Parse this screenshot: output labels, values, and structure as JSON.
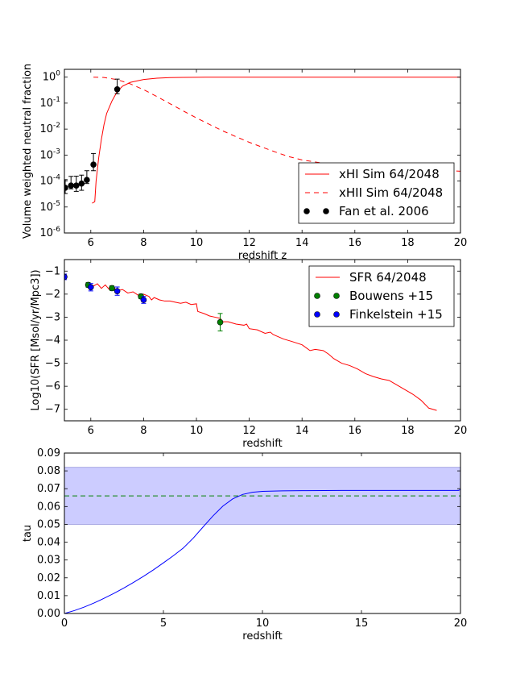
{
  "chart_data": [
    {
      "type": "line",
      "xlabel": "redshift z",
      "ylabel": "Volume weighted neutral fraction",
      "xlim": [
        5,
        20
      ],
      "ylim": [
        1e-06,
        2
      ],
      "yscale": "log",
      "x_ticks": [
        "6",
        "8",
        "10",
        "12",
        "14",
        "16",
        "18",
        "20"
      ],
      "y_ticks": [
        {
          "base": "10",
          "exp": "-6"
        },
        {
          "base": "10",
          "exp": "-5"
        },
        {
          "base": "10",
          "exp": "-4"
        },
        {
          "base": "10",
          "exp": "-3"
        },
        {
          "base": "10",
          "exp": "-2"
        },
        {
          "base": "10",
          "exp": "-1"
        },
        {
          "base": "10",
          "exp": "0"
        }
      ],
      "legend_position": "lower-right",
      "series": [
        {
          "name": "xHI Sim 64/2048",
          "style": "solid",
          "color": "#ff0000",
          "x": [
            6.05,
            6.15,
            6.2,
            6.3,
            6.4,
            6.5,
            6.6,
            6.8,
            7.0,
            7.2,
            7.5,
            8.0,
            8.5,
            9.0,
            9.5,
            10.0,
            11,
            12,
            14,
            16,
            18,
            20
          ],
          "y": [
            1.4e-05,
            1.6e-05,
            0.0001,
            0.0008,
            0.004,
            0.015,
            0.04,
            0.12,
            0.28,
            0.45,
            0.63,
            0.81,
            0.91,
            0.96,
            0.98,
            0.99,
            1.0,
            1.0,
            1.0,
            1.0,
            1.0,
            1.0
          ]
        },
        {
          "name": "xHII Sim 64/2048",
          "style": "dashed",
          "color": "#ff0000",
          "x": [
            6.1,
            6.5,
            7.0,
            7.5,
            8.0,
            8.5,
            9.0,
            9.5,
            10.0,
            10.5,
            11,
            11.5,
            12,
            12.5,
            13,
            13.5,
            14,
            15,
            16,
            17,
            18,
            19,
            20
          ],
          "y": [
            1.0,
            0.97,
            0.8,
            0.55,
            0.33,
            0.18,
            0.095,
            0.05,
            0.027,
            0.015,
            0.0085,
            0.0051,
            0.0031,
            0.002,
            0.0013,
            0.00087,
            0.00065,
            0.00045,
            0.00036,
            0.00031,
            0.00028,
            0.00026,
            0.00024
          ]
        },
        {
          "name": "Fan et al. 2006",
          "style": "points",
          "color": "#000000",
          "x": [
            5.03,
            5.25,
            5.45,
            5.65,
            5.85,
            6.1,
            7.0
          ],
          "y": [
            5.5e-05,
            6.7e-05,
            6.7e-05,
            8e-05,
            0.00011,
            0.00043,
            0.34
          ],
          "yerr_low": [
            2.2e-05,
            1.7e-05,
            2.7e-05,
            3.6e-05,
            3e-05,
            0.00018,
            0.11
          ],
          "yerr_high": [
            5.8e-05,
            8.4e-05,
            8.7e-05,
            8.9e-05,
            0.00014,
            0.00072,
            0.5
          ]
        }
      ]
    },
    {
      "type": "line",
      "xlabel": "redshift",
      "ylabel": "Log10(SFR [Msol/yr/Mpc3])",
      "xlim": [
        5,
        20
      ],
      "ylim": [
        -7.5,
        -0.5
      ],
      "x_ticks": [
        "6",
        "8",
        "10",
        "12",
        "14",
        "16",
        "18",
        "20"
      ],
      "y_ticks": [
        "−7",
        "−6",
        "−5",
        "−4",
        "−3",
        "−2",
        "−1"
      ],
      "legend_position": "top-right",
      "series": [
        {
          "name": "SFR 64/2048",
          "style": "solid",
          "color": "#ff0000",
          "x": [
            5.95,
            6.1,
            6.25,
            6.4,
            6.55,
            6.7,
            6.85,
            7.0,
            7.2,
            7.4,
            7.6,
            7.8,
            8.0,
            8.2,
            8.3,
            8.4,
            8.6,
            8.8,
            9.0,
            9.2,
            9.4,
            9.6,
            9.8,
            10.0,
            10.05,
            10.3,
            10.5,
            10.7,
            10.9,
            11.0,
            11.2,
            11.5,
            11.8,
            11.9,
            12.0,
            12.3,
            12.6,
            12.8,
            12.9,
            13.0,
            13.3,
            13.6,
            14.0,
            14.3,
            14.5,
            14.8,
            15.0,
            15.2,
            15.5,
            15.8,
            16.1,
            16.4,
            16.7,
            17.0,
            17.3,
            17.6,
            17.9,
            18.2,
            18.5,
            18.8,
            19.1
          ],
          "y": [
            -1.55,
            -1.65,
            -1.55,
            -1.75,
            -1.6,
            -1.8,
            -1.7,
            -1.85,
            -1.8,
            -1.95,
            -1.9,
            -2.05,
            -2.0,
            -2.1,
            -2.25,
            -2.15,
            -2.25,
            -2.3,
            -2.3,
            -2.35,
            -2.4,
            -2.35,
            -2.45,
            -2.42,
            -2.75,
            -2.85,
            -2.95,
            -3.0,
            -3.05,
            -3.2,
            -3.2,
            -3.3,
            -3.35,
            -3.3,
            -3.5,
            -3.55,
            -3.7,
            -3.65,
            -3.75,
            -3.8,
            -3.95,
            -4.05,
            -4.2,
            -4.45,
            -4.4,
            -4.45,
            -4.6,
            -4.8,
            -5.0,
            -5.1,
            -5.25,
            -5.45,
            -5.58,
            -5.68,
            -5.75,
            -5.95,
            -6.15,
            -6.35,
            -6.6,
            -6.95,
            -7.05
          ]
        },
        {
          "name": "Bouwens +15",
          "style": "points",
          "color": "#008000",
          "x": [
            5.9,
            6.8,
            7.9,
            10.9
          ],
          "y": [
            -1.6,
            -1.74,
            -2.1,
            -3.22
          ],
          "yerr": [
            0.1,
            0.1,
            0.1,
            0.38
          ]
        },
        {
          "name": "Finkelstein +15",
          "style": "points",
          "color": "#0000ff",
          "x": [
            5.0,
            6.0,
            7.0,
            8.0
          ],
          "y": [
            -1.25,
            -1.7,
            -1.87,
            -2.25
          ],
          "yerr": [
            0.12,
            0.16,
            0.18,
            0.15
          ]
        }
      ]
    },
    {
      "type": "line",
      "xlabel": "redshift",
      "ylabel": "tau",
      "xlim": [
        0,
        20
      ],
      "ylim": [
        0.0,
        0.09
      ],
      "x_ticks": [
        "0",
        "5",
        "10",
        "15",
        "20"
      ],
      "y_ticks": [
        "0.00",
        "0.01",
        "0.02",
        "0.03",
        "0.04",
        "0.05",
        "0.06",
        "0.07",
        "0.08",
        "0.09"
      ],
      "band": {
        "y0": 0.05,
        "y1": 0.082,
        "color": "#ccccff",
        "edge": "#9999dd"
      },
      "reference": {
        "y": 0.066,
        "style": "dashed",
        "color": "#008000"
      },
      "series": [
        {
          "name": "",
          "style": "solid",
          "color": "#0000ff",
          "x": [
            0.0,
            0.5,
            1.0,
            1.5,
            2.0,
            2.5,
            3.0,
            3.5,
            4.0,
            4.5,
            5.0,
            5.5,
            6.0,
            6.1,
            6.5,
            7.0,
            7.5,
            8.0,
            8.5,
            9.0,
            9.5,
            10.0,
            11,
            12,
            14,
            16,
            18,
            19.9,
            20.0
          ],
          "y": [
            0.0,
            0.0016,
            0.0036,
            0.0059,
            0.0085,
            0.0113,
            0.0143,
            0.0175,
            0.0209,
            0.0245,
            0.0284,
            0.0324,
            0.0367,
            0.0378,
            0.0422,
            0.0485,
            0.0547,
            0.0602,
            0.0643,
            0.0668,
            0.068,
            0.0685,
            0.0688,
            0.0689,
            0.069,
            0.069,
            0.069,
            0.069,
            0.0695
          ]
        }
      ]
    }
  ]
}
